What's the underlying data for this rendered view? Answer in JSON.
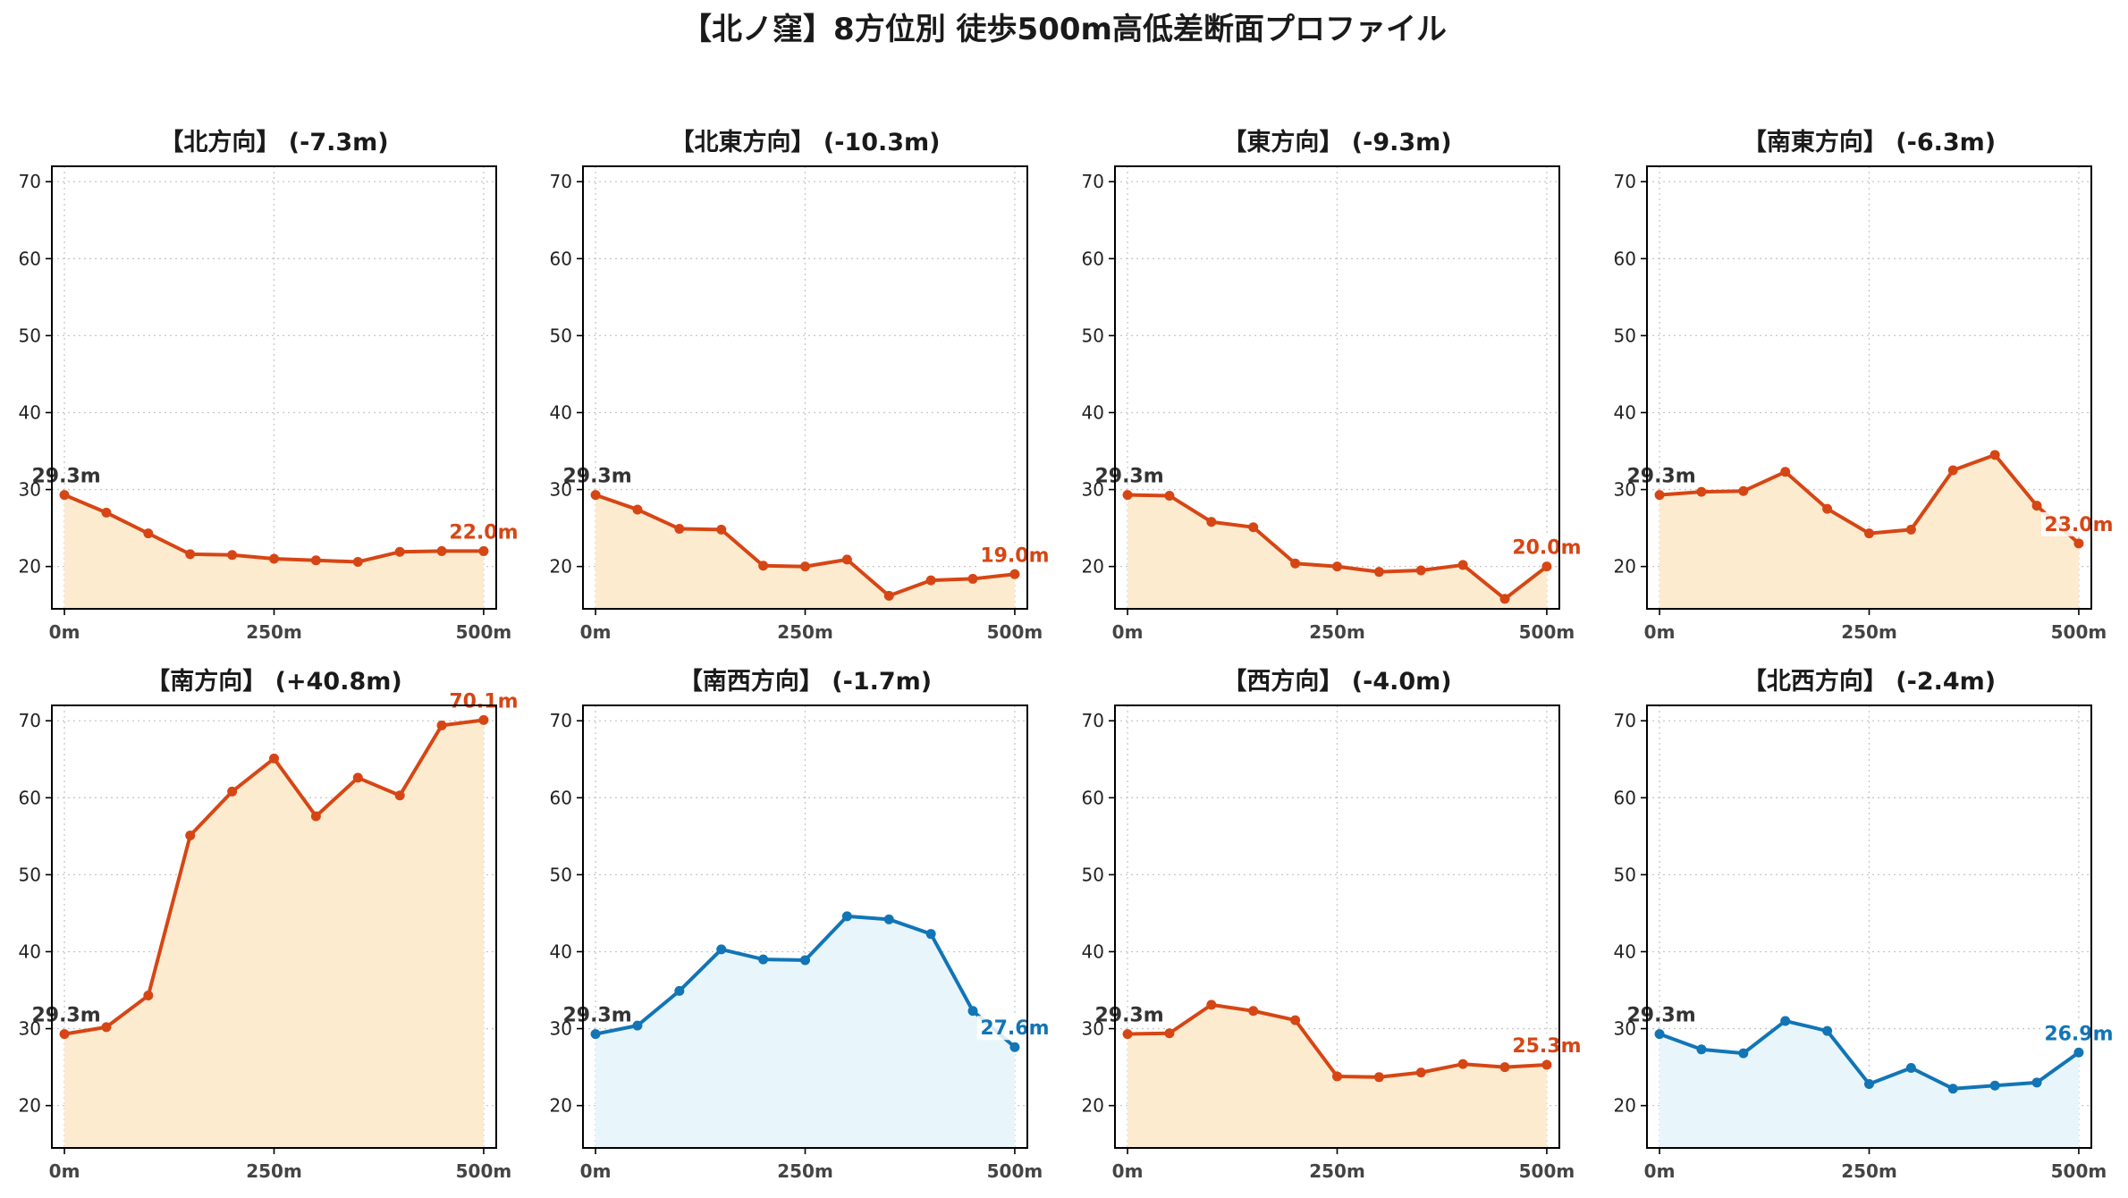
{
  "title": "【北ノ窪】8方位別 徒歩500m高低差断面プロファイル",
  "colors": {
    "down_line": "#d64614",
    "down_fill": "#fdebd0",
    "up_line": "#1175b6",
    "up_fill": "#e8f6fc"
  },
  "x_tick_labels": [
    "0m",
    "250m",
    "500m"
  ],
  "chart_data": [
    {
      "type": "area",
      "title": "【北方向】 (-7.3m)",
      "x": [
        0,
        50,
        100,
        150,
        200,
        250,
        300,
        350,
        400,
        450,
        500
      ],
      "y": [
        29.3,
        27.0,
        24.3,
        21.6,
        21.5,
        21.0,
        20.8,
        20.6,
        21.9,
        22.0,
        22.0
      ],
      "start_label": "29.3m",
      "end_label": "22.0m",
      "style": "down",
      "xlim": [
        -15,
        515
      ],
      "ylim": [
        14.5,
        72
      ],
      "yticks": [
        20,
        30,
        40,
        50,
        60,
        70
      ],
      "xticks": [
        0,
        250,
        500
      ],
      "grid": true
    },
    {
      "type": "area",
      "title": "【北東方向】 (-10.3m)",
      "x": [
        0,
        50,
        100,
        150,
        200,
        250,
        300,
        350,
        400,
        450,
        500
      ],
      "y": [
        29.3,
        27.4,
        24.9,
        24.8,
        20.1,
        20.0,
        20.9,
        16.2,
        18.2,
        18.4,
        19.0
      ],
      "start_label": "29.3m",
      "end_label": "19.0m",
      "style": "down",
      "xlim": [
        -15,
        515
      ],
      "ylim": [
        14.5,
        72
      ],
      "yticks": [
        20,
        30,
        40,
        50,
        60,
        70
      ],
      "xticks": [
        0,
        250,
        500
      ],
      "grid": true
    },
    {
      "type": "area",
      "title": "【東方向】 (-9.3m)",
      "x": [
        0,
        50,
        100,
        150,
        200,
        250,
        300,
        350,
        400,
        450,
        500
      ],
      "y": [
        29.3,
        29.2,
        25.8,
        25.1,
        20.4,
        20.0,
        19.3,
        19.5,
        20.2,
        15.8,
        20.0
      ],
      "start_label": "29.3m",
      "end_label": "20.0m",
      "style": "down",
      "xlim": [
        -15,
        515
      ],
      "ylim": [
        14.5,
        72
      ],
      "yticks": [
        20,
        30,
        40,
        50,
        60,
        70
      ],
      "xticks": [
        0,
        250,
        500
      ],
      "grid": true
    },
    {
      "type": "area",
      "title": "【南東方向】 (-6.3m)",
      "x": [
        0,
        50,
        100,
        150,
        200,
        250,
        300,
        350,
        400,
        450,
        500
      ],
      "y": [
        29.3,
        29.7,
        29.8,
        32.3,
        27.5,
        24.3,
        24.8,
        32.5,
        34.5,
        27.9,
        23.0
      ],
      "start_label": "29.3m",
      "end_label": "23.0m",
      "style": "down",
      "xlim": [
        -15,
        515
      ],
      "ylim": [
        14.5,
        72
      ],
      "yticks": [
        20,
        30,
        40,
        50,
        60,
        70
      ],
      "xticks": [
        0,
        250,
        500
      ],
      "grid": true
    },
    {
      "type": "area",
      "title": "【南方向】 (+40.8m)",
      "x": [
        0,
        50,
        100,
        150,
        200,
        250,
        300,
        350,
        400,
        450,
        500
      ],
      "y": [
        29.3,
        30.2,
        34.3,
        55.1,
        60.8,
        65.1,
        57.6,
        62.6,
        60.3,
        69.4,
        70.1
      ],
      "start_label": "29.3m",
      "end_label": "70.1m",
      "style": "down",
      "xlim": [
        -15,
        515
      ],
      "ylim": [
        14.5,
        72
      ],
      "yticks": [
        20,
        30,
        40,
        50,
        60,
        70
      ],
      "xticks": [
        0,
        250,
        500
      ],
      "grid": true
    },
    {
      "type": "area",
      "title": "【南西方向】 (-1.7m)",
      "x": [
        0,
        50,
        100,
        150,
        200,
        250,
        300,
        350,
        400,
        450,
        500
      ],
      "y": [
        29.3,
        30.4,
        34.9,
        40.3,
        39.0,
        38.9,
        44.6,
        44.2,
        42.3,
        32.3,
        27.6
      ],
      "start_label": "29.3m",
      "end_label": "27.6m",
      "style": "up",
      "xlim": [
        -15,
        515
      ],
      "ylim": [
        14.5,
        72
      ],
      "yticks": [
        20,
        30,
        40,
        50,
        60,
        70
      ],
      "xticks": [
        0,
        250,
        500
      ],
      "grid": true
    },
    {
      "type": "area",
      "title": "【西方向】 (-4.0m)",
      "x": [
        0,
        50,
        100,
        150,
        200,
        250,
        300,
        350,
        400,
        450,
        500
      ],
      "y": [
        29.3,
        29.4,
        33.1,
        32.3,
        31.1,
        23.8,
        23.7,
        24.3,
        25.4,
        25.0,
        25.3
      ],
      "start_label": "29.3m",
      "end_label": "25.3m",
      "style": "down",
      "xlim": [
        -15,
        515
      ],
      "ylim": [
        14.5,
        72
      ],
      "yticks": [
        20,
        30,
        40,
        50,
        60,
        70
      ],
      "xticks": [
        0,
        250,
        500
      ],
      "grid": true
    },
    {
      "type": "area",
      "title": "【北西方向】 (-2.4m)",
      "x": [
        0,
        50,
        100,
        150,
        200,
        250,
        300,
        350,
        400,
        450,
        500
      ],
      "y": [
        29.3,
        27.3,
        26.8,
        31.0,
        29.7,
        22.8,
        24.9,
        22.2,
        22.6,
        23.0,
        26.9
      ],
      "start_label": "29.3m",
      "end_label": "26.9m",
      "style": "up",
      "xlim": [
        -15,
        515
      ],
      "ylim": [
        14.5,
        72
      ],
      "yticks": [
        20,
        30,
        40,
        50,
        60,
        70
      ],
      "xticks": [
        0,
        250,
        500
      ],
      "grid": true
    }
  ]
}
